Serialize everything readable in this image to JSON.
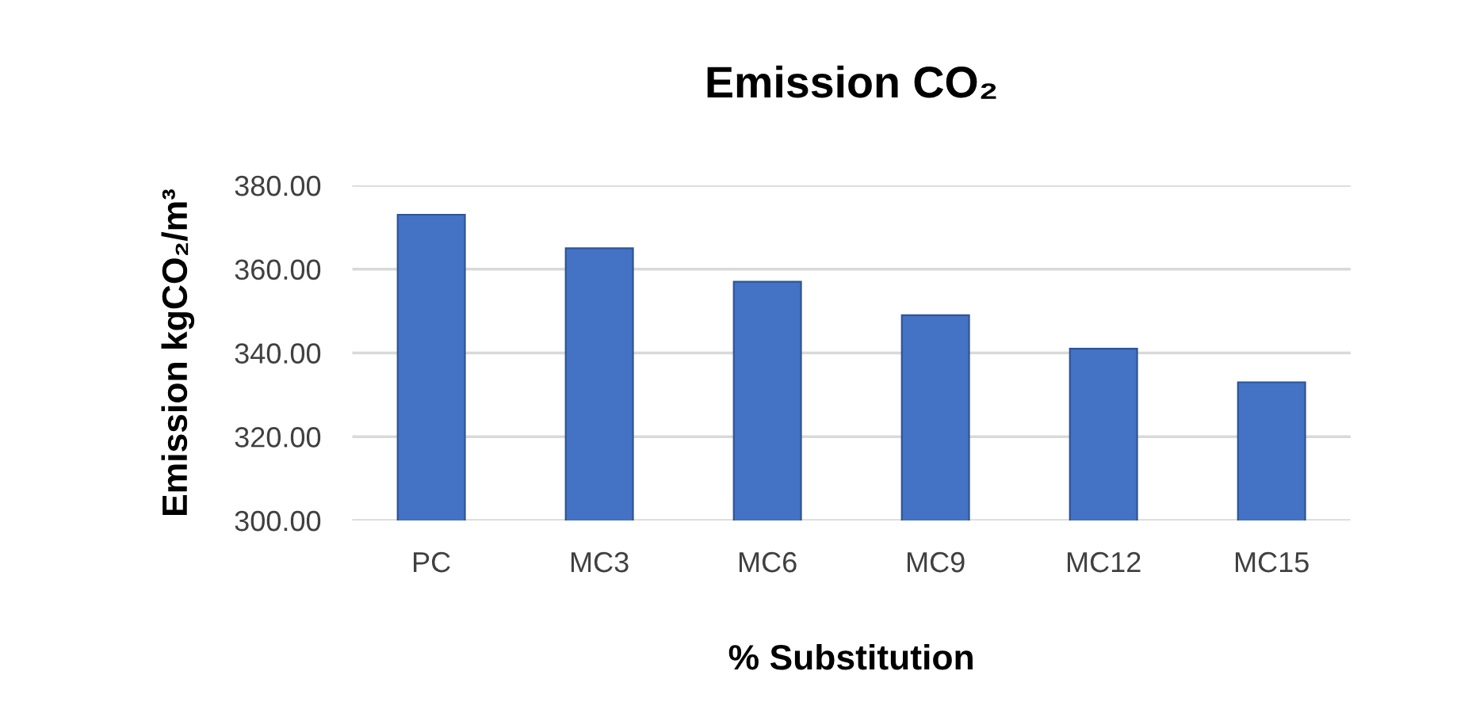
{
  "chart_data": {
    "type": "bar",
    "title": "Emission CO₂",
    "xlabel": "% Substitution",
    "ylabel": "Emission kgCO₂/m³",
    "categories": [
      "PC",
      "MC3",
      "MC6",
      "MC9",
      "MC12",
      "MC15"
    ],
    "values": [
      373,
      365,
      357,
      349,
      341,
      333
    ],
    "color": "#4472c4",
    "ylim": [
      300,
      380
    ],
    "yticks": [
      {
        "value": 300,
        "label": "300.00"
      },
      {
        "value": 320,
        "label": "320.00"
      },
      {
        "value": 340,
        "label": "340.00"
      },
      {
        "value": 360,
        "label": "360.00"
      },
      {
        "value": 380,
        "label": "380.00"
      }
    ],
    "grid": "y"
  }
}
